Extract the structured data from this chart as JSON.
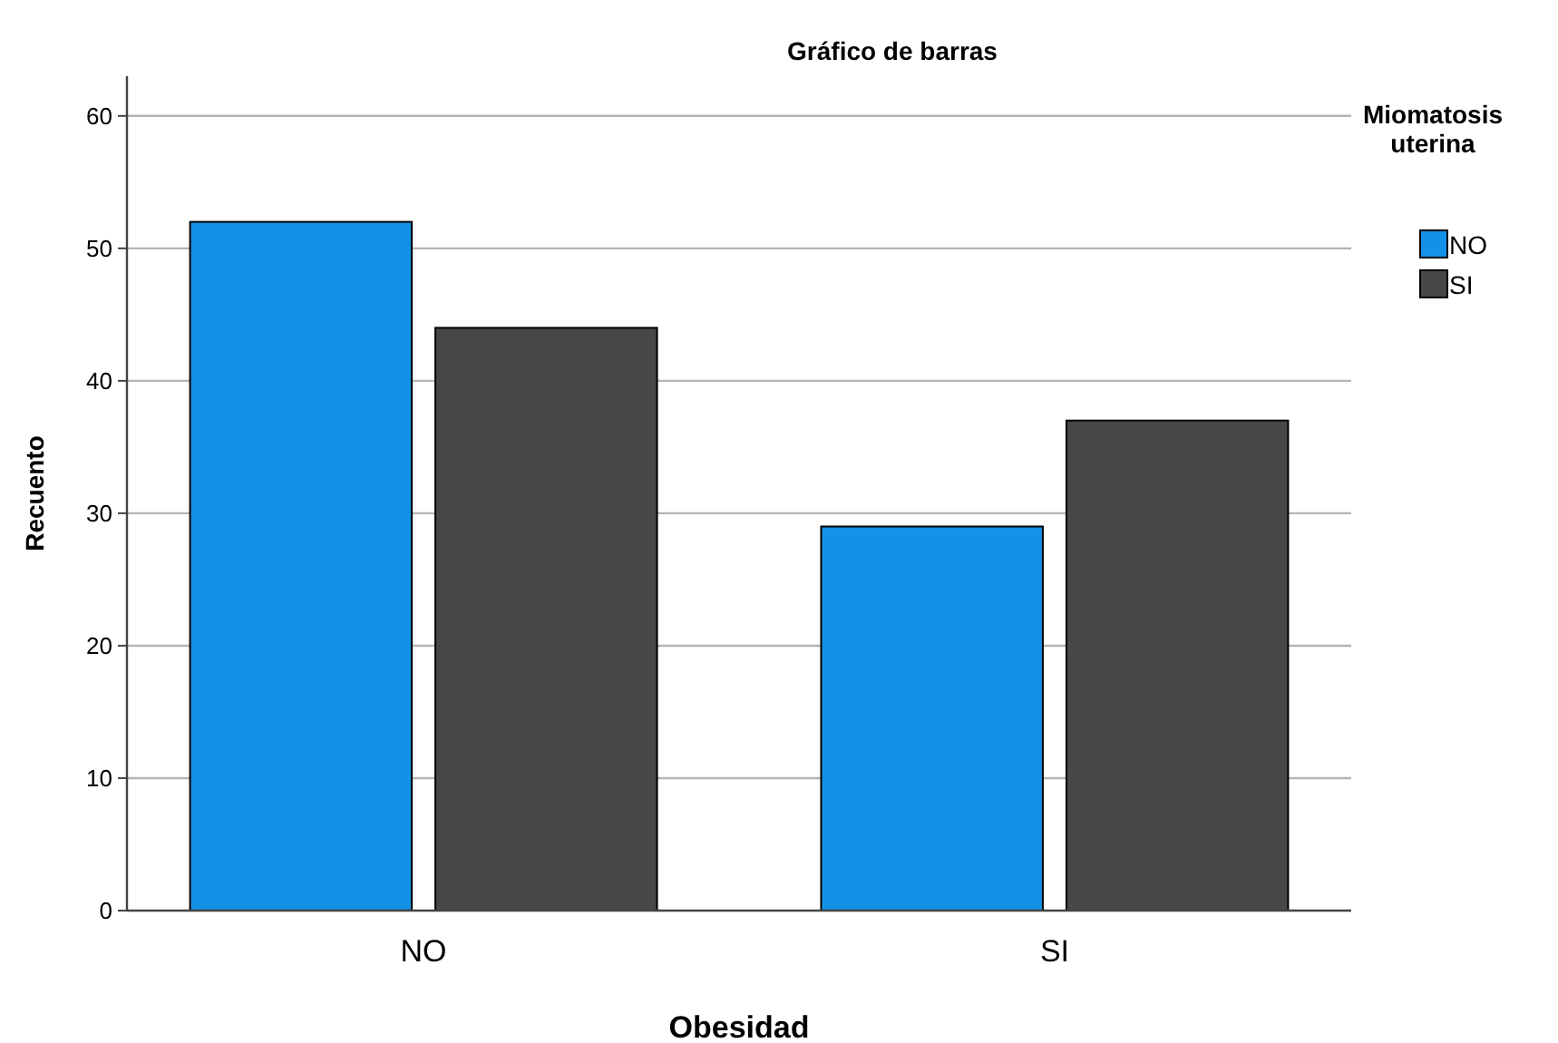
{
  "chart_data": {
    "type": "bar",
    "title": "Gráfico de barras",
    "xlabel": "Obesidad",
    "ylabel": "Recuento",
    "legend_title": "Miomatosis uterina",
    "categories": [
      "NO",
      "SI"
    ],
    "series": [
      {
        "name": "NO",
        "color": "#1491e6",
        "values": [
          52,
          29
        ]
      },
      {
        "name": "SI",
        "color": "#474747",
        "values": [
          44,
          37
        ]
      }
    ],
    "ylim": [
      0,
      63
    ],
    "yticks": [
      0,
      10,
      20,
      30,
      40,
      50,
      60
    ],
    "grid": "y",
    "legend": "top right"
  }
}
